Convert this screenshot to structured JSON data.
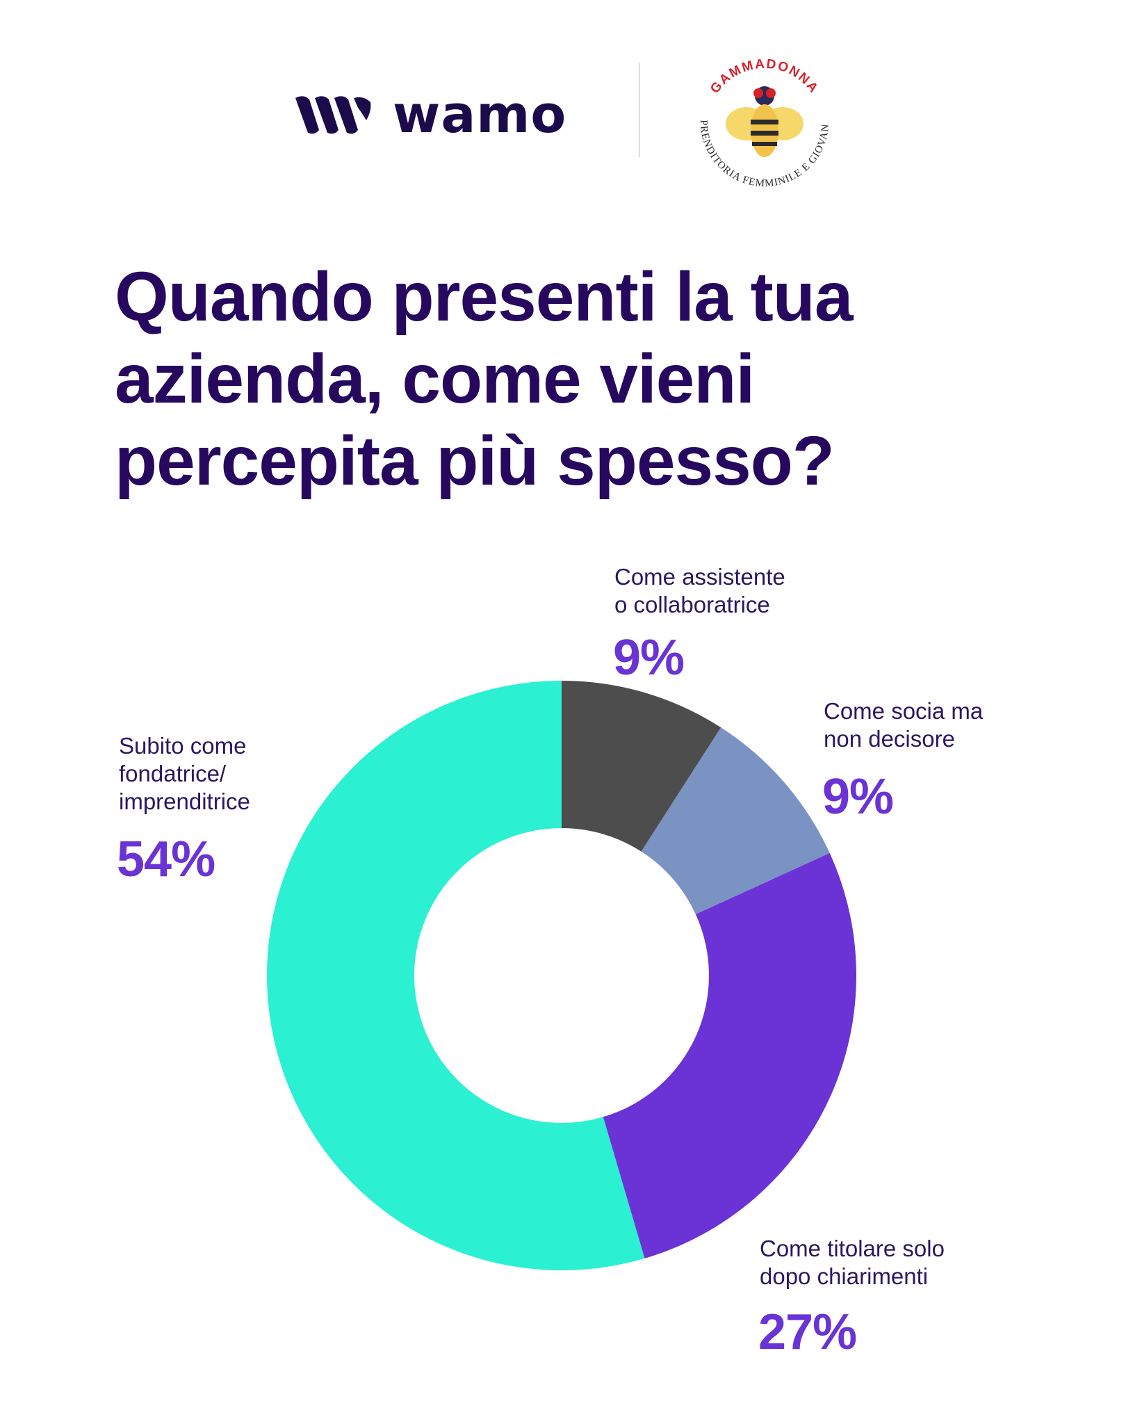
{
  "header": {
    "left_logo": {
      "wordmark": "wamo",
      "color": "#1b0b4a"
    },
    "right_logo": {
      "name": "GammaDonna",
      "tagline": "Imprenditoria Femminile e Giovanile"
    }
  },
  "title": "Quando presenti la tua azienda, come vieni percepita più spesso?",
  "chart_data": {
    "type": "pie",
    "style": "donut",
    "title": "Quando presenti la tua azienda, come vieni percepita più spesso?",
    "slices": [
      {
        "label": "Come assistente o collaboratrice",
        "label_lines": "Come assistente\no collaboratrice",
        "value": 9,
        "display": "9%",
        "color": "#4d4d4d"
      },
      {
        "label": "Come socia ma non decisore",
        "label_lines": "Come socia ma\nnon decisore",
        "value": 9,
        "display": "9%",
        "color": "#7b93c3"
      },
      {
        "label": "Come titolare solo dopo chiarimenti",
        "label_lines": "Come titolare solo\ndopo chiarimenti",
        "value": 27,
        "display": "27%",
        "color": "#6b33d6"
      },
      {
        "label": "Subito come fondatrice/ imprenditrice",
        "label_lines": "Subito come\nfondatrice/\nimprenditrice",
        "value": 54,
        "display": "54%",
        "color": "#2cf0d2"
      }
    ],
    "start_angle": "top, clockwise",
    "legend": "none"
  },
  "colors": {
    "title": "#26095f",
    "label_text": "#2b1761",
    "percent_text": "#6a33d6",
    "background": "#ffffff"
  }
}
